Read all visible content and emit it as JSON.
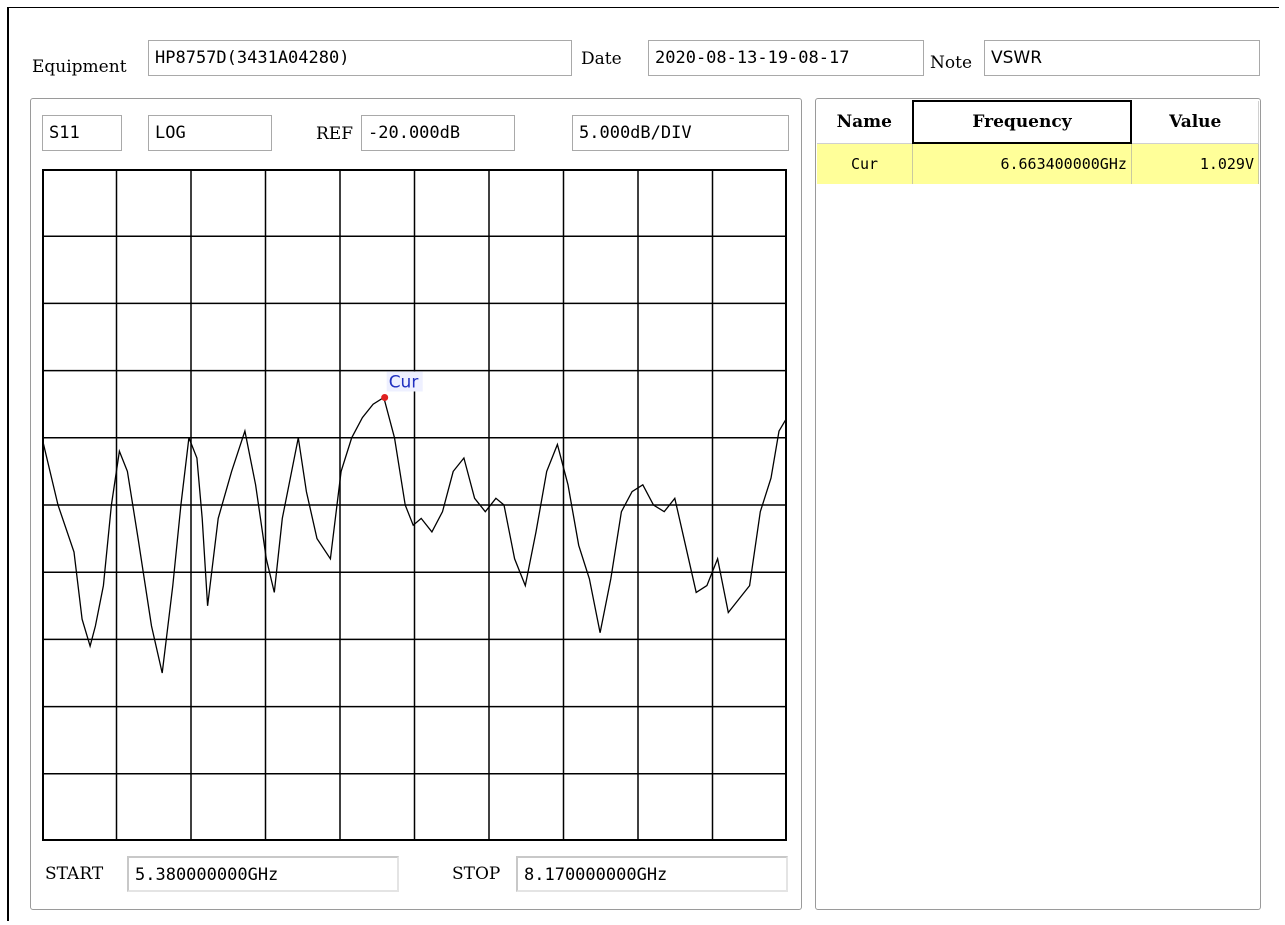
{
  "header": {
    "equipment_label": "Equipment",
    "equipment_value": "HP8757D(3431A04280)",
    "date_label": "Date",
    "date_value": "2020-08-13-19-08-17",
    "note_label": "Note",
    "note_value": "VSWR"
  },
  "trace_settings": {
    "channel": "S11",
    "format": "LOG",
    "ref_label": "REF",
    "ref_value": "-20.000dB",
    "scale": "5.000dB/DIV"
  },
  "sweep": {
    "start_label": "START",
    "start_value": "5.380000000GHz",
    "stop_label": "STOP",
    "stop_value": "8.170000000GHz"
  },
  "marker_table": {
    "columns": [
      "Name",
      "Frequency",
      "Value"
    ],
    "rows": [
      {
        "name": "Cur",
        "frequency": "6.663400000GHz",
        "value": "1.029V"
      }
    ]
  },
  "colors": {
    "trace": "#000000",
    "marker": "#e02020",
    "marker_label": "#2030c0",
    "selected_row": "#ffff99"
  },
  "chart_data": {
    "type": "line",
    "xlim": [
      5.38,
      8.17
    ],
    "ylim": [
      0,
      10
    ],
    "grid": true,
    "divisions_x": 10,
    "divisions_y": 10,
    "marker": {
      "name": "Cur",
      "x": 6.6634,
      "y": 6.6
    },
    "series": [
      {
        "x": [
          5.38,
          5.44,
          5.5,
          5.53,
          5.56,
          5.58,
          5.61,
          5.64,
          5.67,
          5.7,
          5.74,
          5.79,
          5.83,
          5.87,
          5.9,
          5.93,
          5.96,
          5.98,
          6.0,
          6.04,
          6.09,
          6.14,
          6.18,
          6.22,
          6.25,
          6.28,
          6.31,
          6.34,
          6.37,
          6.41,
          6.46,
          6.5,
          6.54,
          6.58,
          6.62,
          6.66,
          6.7,
          6.74,
          6.77,
          6.8,
          6.84,
          6.88,
          6.92,
          6.96,
          7.0,
          7.04,
          7.08,
          7.11,
          7.15,
          7.19,
          7.23,
          7.27,
          7.31,
          7.35,
          7.39,
          7.43,
          7.47,
          7.51,
          7.55,
          7.59,
          7.63,
          7.67,
          7.71,
          7.75,
          7.79,
          7.83,
          7.87,
          7.91,
          7.95,
          7.99,
          8.03,
          8.07,
          8.11,
          8.14,
          8.17
        ],
        "y": [
          6.0,
          5.0,
          4.3,
          3.3,
          2.9,
          3.2,
          3.8,
          5.0,
          5.8,
          5.5,
          4.5,
          3.2,
          2.5,
          3.8,
          5.0,
          6.0,
          5.7,
          4.8,
          3.5,
          4.8,
          5.5,
          6.1,
          5.3,
          4.2,
          3.7,
          4.8,
          5.4,
          6.0,
          5.2,
          4.5,
          4.2,
          5.5,
          6.0,
          6.3,
          6.5,
          6.6,
          6.0,
          5.0,
          4.7,
          4.8,
          4.6,
          4.9,
          5.5,
          5.7,
          5.1,
          4.9,
          5.1,
          5.0,
          4.2,
          3.8,
          4.6,
          5.5,
          5.9,
          5.3,
          4.4,
          3.9,
          3.1,
          3.9,
          4.9,
          5.2,
          5.3,
          5.0,
          4.9,
          5.1,
          4.4,
          3.7,
          3.8,
          4.2,
          3.4,
          3.6,
          3.8,
          4.9,
          5.4,
          6.1,
          6.3
        ]
      }
    ]
  }
}
